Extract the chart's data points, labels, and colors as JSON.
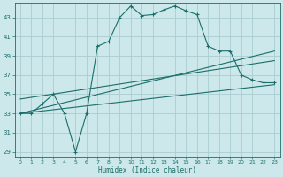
{
  "xlabel": "Humidex (Indice chaleur)",
  "bg_color": "#cce8ea",
  "grid_color": "#aacdd2",
  "line_color": "#1a6e6a",
  "xlim": [
    -0.5,
    23.5
  ],
  "ylim": [
    28.5,
    44.5
  ],
  "yticks": [
    29,
    31,
    33,
    35,
    37,
    39,
    41,
    43
  ],
  "xticks": [
    0,
    1,
    2,
    3,
    4,
    5,
    6,
    7,
    8,
    9,
    10,
    11,
    12,
    13,
    14,
    15,
    16,
    17,
    18,
    19,
    20,
    21,
    22,
    23
  ],
  "curve_x": [
    0,
    1,
    2,
    3,
    4,
    5,
    6,
    7,
    8,
    9,
    10,
    11,
    12,
    13,
    14,
    15,
    16,
    17,
    18,
    19,
    20,
    21,
    22,
    23
  ],
  "curve_y": [
    33,
    33,
    34,
    35,
    33,
    29,
    33,
    40,
    40.5,
    43,
    44.2,
    43.2,
    43.3,
    43.8,
    44.2,
    43.7,
    43.3,
    40,
    39.5,
    39.5,
    37,
    36.5,
    36.2,
    36.2
  ],
  "line1_x": [
    0,
    23
  ],
  "line1_y": [
    33.0,
    36.0
  ],
  "line2_x": [
    0,
    23
  ],
  "line2_y": [
    34.5,
    38.5
  ],
  "line3_x": [
    0,
    23
  ],
  "line3_y": [
    33.0,
    39.5
  ]
}
